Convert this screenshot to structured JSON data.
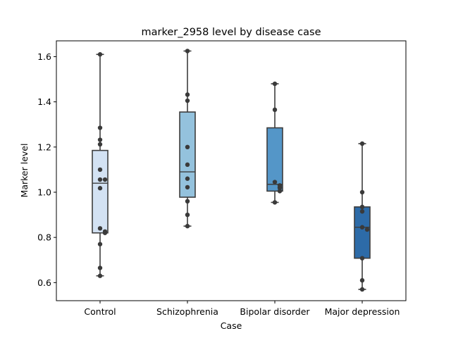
{
  "chart_data": {
    "type": "box",
    "title": "marker_2958 level by disease case",
    "xlabel": "Case",
    "ylabel": "Marker level",
    "ylim": [
      0.52,
      1.67
    ],
    "yticks": [
      "0.6",
      "0.8",
      "1.0",
      "1.2",
      "1.4",
      "1.6"
    ],
    "categories": [
      "Control",
      "Schizophrenia",
      "Bipolar disorder",
      "Major depression"
    ],
    "colors": [
      "#d3e2f3",
      "#94c2dd",
      "#5496c8",
      "#2d6ba8"
    ],
    "boxes": [
      {
        "whisker_low": 0.63,
        "q1": 0.82,
        "median": 1.04,
        "q3": 1.185,
        "whisker_high": 1.61
      },
      {
        "whisker_low": 0.85,
        "q1": 0.978,
        "median": 1.09,
        "q3": 1.355,
        "whisker_high": 1.625
      },
      {
        "whisker_low": 0.955,
        "q1": 1.005,
        "median": 1.035,
        "q3": 1.285,
        "whisker_high": 1.48
      },
      {
        "whisker_low": 0.57,
        "q1": 0.708,
        "median": 0.845,
        "q3": 0.935,
        "whisker_high": 1.215
      }
    ],
    "points": [
      [
        1.61,
        1.285,
        1.232,
        1.212,
        1.1,
        1.056,
        1.056,
        1.018,
        0.84,
        0.826,
        0.82,
        0.77,
        0.665,
        0.63
      ],
      [
        1.625,
        1.432,
        1.405,
        1.2,
        1.122,
        1.06,
        1.022,
        0.96,
        0.9,
        0.85
      ],
      [
        1.48,
        1.365,
        1.045,
        1.03,
        1.02,
        1.005,
        0.955
      ],
      [
        1.215,
        1.0,
        0.935,
        0.915,
        0.845,
        0.835,
        0.708,
        0.61,
        0.57
      ]
    ]
  }
}
